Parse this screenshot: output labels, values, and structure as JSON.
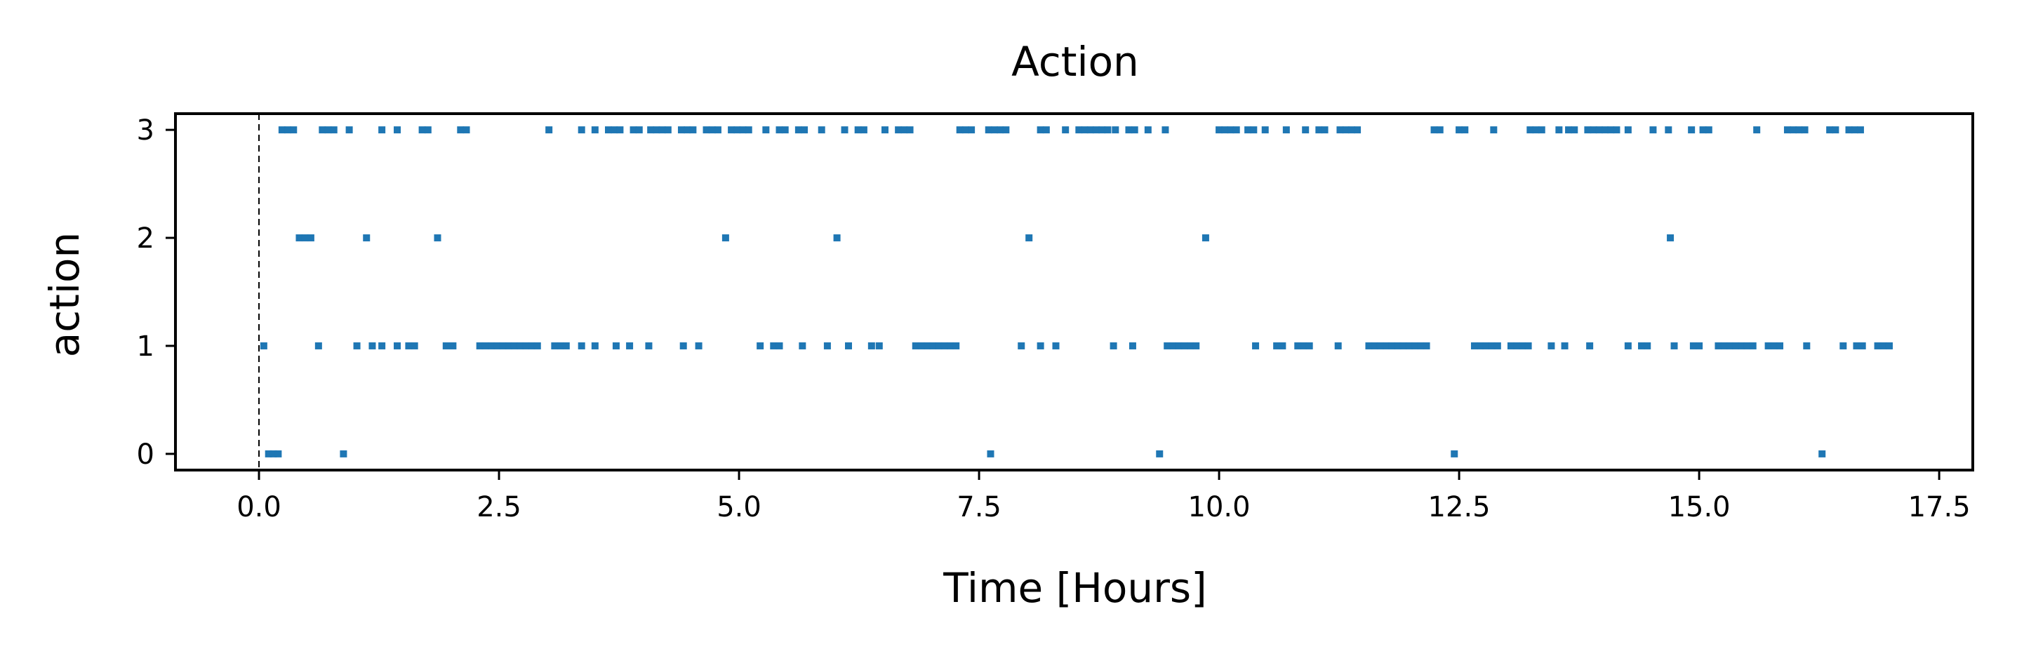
{
  "chart_data": {
    "type": "scatter",
    "title": "Action",
    "xlabel": "Time [Hours]",
    "ylabel": "action",
    "xlim": [
      -0.87,
      17.85
    ],
    "ylim": [
      -0.15,
      3.15
    ],
    "xticks": [
      0.0,
      2.5,
      5.0,
      7.5,
      10.0,
      12.5,
      15.0,
      17.5
    ],
    "xtick_labels": [
      "0.0",
      "2.5",
      "5.0",
      "7.5",
      "10.0",
      "12.5",
      "15.0",
      "17.5"
    ],
    "yticks": [
      0,
      1,
      2,
      3
    ],
    "ytick_labels": [
      "0",
      "1",
      "2",
      "3"
    ],
    "vline_x": 0,
    "marker_color": "#1f77b4",
    "grid": false,
    "points": [
      [
        0.1,
        0
      ],
      [
        0.15,
        0
      ],
      [
        0.2,
        0
      ],
      [
        0.88,
        0
      ],
      [
        7.62,
        0
      ],
      [
        9.38,
        0
      ],
      [
        12.45,
        0
      ],
      [
        16.28,
        0
      ],
      [
        0.05,
        1
      ],
      [
        0.62,
        1
      ],
      [
        1.02,
        1
      ],
      [
        1.18,
        1
      ],
      [
        1.28,
        1
      ],
      [
        1.44,
        1
      ],
      [
        1.56,
        1
      ],
      [
        1.62,
        1
      ],
      [
        1.95,
        1
      ],
      [
        2.02,
        1
      ],
      [
        2.3,
        1
      ],
      [
        2.36,
        1
      ],
      [
        2.42,
        1
      ],
      [
        2.48,
        1
      ],
      [
        2.54,
        1
      ],
      [
        2.6,
        1
      ],
      [
        2.66,
        1
      ],
      [
        2.72,
        1
      ],
      [
        2.78,
        1
      ],
      [
        2.84,
        1
      ],
      [
        2.9,
        1
      ],
      [
        3.08,
        1
      ],
      [
        3.14,
        1
      ],
      [
        3.2,
        1
      ],
      [
        3.36,
        1
      ],
      [
        3.5,
        1
      ],
      [
        3.72,
        1
      ],
      [
        3.86,
        1
      ],
      [
        4.06,
        1
      ],
      [
        4.42,
        1
      ],
      [
        4.58,
        1
      ],
      [
        5.22,
        1
      ],
      [
        5.36,
        1
      ],
      [
        5.42,
        1
      ],
      [
        5.66,
        1
      ],
      [
        5.92,
        1
      ],
      [
        6.14,
        1
      ],
      [
        6.38,
        1
      ],
      [
        6.46,
        1
      ],
      [
        6.84,
        1
      ],
      [
        6.9,
        1
      ],
      [
        6.96,
        1
      ],
      [
        7.02,
        1
      ],
      [
        7.08,
        1
      ],
      [
        7.14,
        1
      ],
      [
        7.2,
        1
      ],
      [
        7.26,
        1
      ],
      [
        7.94,
        1
      ],
      [
        8.14,
        1
      ],
      [
        8.3,
        1
      ],
      [
        8.9,
        1
      ],
      [
        9.1,
        1
      ],
      [
        9.46,
        1
      ],
      [
        9.52,
        1
      ],
      [
        9.58,
        1
      ],
      [
        9.64,
        1
      ],
      [
        9.7,
        1
      ],
      [
        9.76,
        1
      ],
      [
        10.38,
        1
      ],
      [
        10.6,
        1
      ],
      [
        10.66,
        1
      ],
      [
        10.82,
        1
      ],
      [
        10.88,
        1
      ],
      [
        10.94,
        1
      ],
      [
        11.24,
        1
      ],
      [
        11.56,
        1
      ],
      [
        11.62,
        1
      ],
      [
        11.68,
        1
      ],
      [
        11.74,
        1
      ],
      [
        11.8,
        1
      ],
      [
        11.86,
        1
      ],
      [
        11.92,
        1
      ],
      [
        11.98,
        1
      ],
      [
        12.04,
        1
      ],
      [
        12.1,
        1
      ],
      [
        12.16,
        1
      ],
      [
        12.66,
        1
      ],
      [
        12.72,
        1
      ],
      [
        12.78,
        1
      ],
      [
        12.84,
        1
      ],
      [
        12.9,
        1
      ],
      [
        13.04,
        1
      ],
      [
        13.1,
        1
      ],
      [
        13.16,
        1
      ],
      [
        13.22,
        1
      ],
      [
        13.46,
        1
      ],
      [
        13.6,
        1
      ],
      [
        13.86,
        1
      ],
      [
        14.26,
        1
      ],
      [
        14.4,
        1
      ],
      [
        14.46,
        1
      ],
      [
        14.74,
        1
      ],
      [
        14.94,
        1
      ],
      [
        15.0,
        1
      ],
      [
        15.2,
        1
      ],
      [
        15.26,
        1
      ],
      [
        15.32,
        1
      ],
      [
        15.38,
        1
      ],
      [
        15.44,
        1
      ],
      [
        15.5,
        1
      ],
      [
        15.56,
        1
      ],
      [
        15.72,
        1
      ],
      [
        15.78,
        1
      ],
      [
        15.84,
        1
      ],
      [
        16.12,
        1
      ],
      [
        16.5,
        1
      ],
      [
        16.64,
        1
      ],
      [
        16.7,
        1
      ],
      [
        16.86,
        1
      ],
      [
        16.92,
        1
      ],
      [
        16.98,
        1
      ],
      [
        0.42,
        2
      ],
      [
        0.48,
        2
      ],
      [
        0.54,
        2
      ],
      [
        1.12,
        2
      ],
      [
        1.86,
        2
      ],
      [
        4.86,
        2
      ],
      [
        6.02,
        2
      ],
      [
        8.02,
        2
      ],
      [
        9.86,
        2
      ],
      [
        14.7,
        2
      ],
      [
        0.24,
        3
      ],
      [
        0.3,
        3
      ],
      [
        0.36,
        3
      ],
      [
        0.66,
        3
      ],
      [
        0.72,
        3
      ],
      [
        0.78,
        3
      ],
      [
        0.94,
        3
      ],
      [
        1.28,
        3
      ],
      [
        1.44,
        3
      ],
      [
        1.7,
        3
      ],
      [
        1.76,
        3
      ],
      [
        2.1,
        3
      ],
      [
        2.16,
        3
      ],
      [
        3.02,
        3
      ],
      [
        3.36,
        3
      ],
      [
        3.5,
        3
      ],
      [
        3.64,
        3
      ],
      [
        3.7,
        3
      ],
      [
        3.76,
        3
      ],
      [
        3.9,
        3
      ],
      [
        3.96,
        3
      ],
      [
        4.08,
        3
      ],
      [
        4.14,
        3
      ],
      [
        4.2,
        3
      ],
      [
        4.26,
        3
      ],
      [
        4.4,
        3
      ],
      [
        4.46,
        3
      ],
      [
        4.52,
        3
      ],
      [
        4.66,
        3
      ],
      [
        4.72,
        3
      ],
      [
        4.78,
        3
      ],
      [
        4.92,
        3
      ],
      [
        4.98,
        3
      ],
      [
        5.04,
        3
      ],
      [
        5.1,
        3
      ],
      [
        5.28,
        3
      ],
      [
        5.42,
        3
      ],
      [
        5.48,
        3
      ],
      [
        5.62,
        3
      ],
      [
        5.68,
        3
      ],
      [
        5.86,
        3
      ],
      [
        6.1,
        3
      ],
      [
        6.24,
        3
      ],
      [
        6.3,
        3
      ],
      [
        6.52,
        3
      ],
      [
        6.66,
        3
      ],
      [
        6.72,
        3
      ],
      [
        6.78,
        3
      ],
      [
        7.3,
        3
      ],
      [
        7.36,
        3
      ],
      [
        7.42,
        3
      ],
      [
        7.6,
        3
      ],
      [
        7.66,
        3
      ],
      [
        7.72,
        3
      ],
      [
        7.78,
        3
      ],
      [
        8.14,
        3
      ],
      [
        8.2,
        3
      ],
      [
        8.4,
        3
      ],
      [
        8.54,
        3
      ],
      [
        8.6,
        3
      ],
      [
        8.66,
        3
      ],
      [
        8.72,
        3
      ],
      [
        8.78,
        3
      ],
      [
        8.84,
        3
      ],
      [
        8.92,
        3
      ],
      [
        9.06,
        3
      ],
      [
        9.12,
        3
      ],
      [
        9.26,
        3
      ],
      [
        9.44,
        3
      ],
      [
        10.0,
        3
      ],
      [
        10.06,
        3
      ],
      [
        10.12,
        3
      ],
      [
        10.18,
        3
      ],
      [
        10.3,
        3
      ],
      [
        10.36,
        3
      ],
      [
        10.48,
        3
      ],
      [
        10.7,
        3
      ],
      [
        10.9,
        3
      ],
      [
        11.04,
        3
      ],
      [
        11.1,
        3
      ],
      [
        11.26,
        3
      ],
      [
        11.32,
        3
      ],
      [
        11.38,
        3
      ],
      [
        11.44,
        3
      ],
      [
        12.24,
        3
      ],
      [
        12.3,
        3
      ],
      [
        12.5,
        3
      ],
      [
        12.56,
        3
      ],
      [
        12.86,
        3
      ],
      [
        13.24,
        3
      ],
      [
        13.3,
        3
      ],
      [
        13.36,
        3
      ],
      [
        13.54,
        3
      ],
      [
        13.64,
        3
      ],
      [
        13.7,
        3
      ],
      [
        13.84,
        3
      ],
      [
        13.9,
        3
      ],
      [
        13.96,
        3
      ],
      [
        14.02,
        3
      ],
      [
        14.08,
        3
      ],
      [
        14.14,
        3
      ],
      [
        14.26,
        3
      ],
      [
        14.52,
        3
      ],
      [
        14.68,
        3
      ],
      [
        14.92,
        3
      ],
      [
        15.04,
        3
      ],
      [
        15.1,
        3
      ],
      [
        15.6,
        3
      ],
      [
        15.92,
        3
      ],
      [
        15.98,
        3
      ],
      [
        16.04,
        3
      ],
      [
        16.1,
        3
      ],
      [
        16.36,
        3
      ],
      [
        16.42,
        3
      ],
      [
        16.56,
        3
      ],
      [
        16.62,
        3
      ],
      [
        16.68,
        3
      ]
    ]
  }
}
